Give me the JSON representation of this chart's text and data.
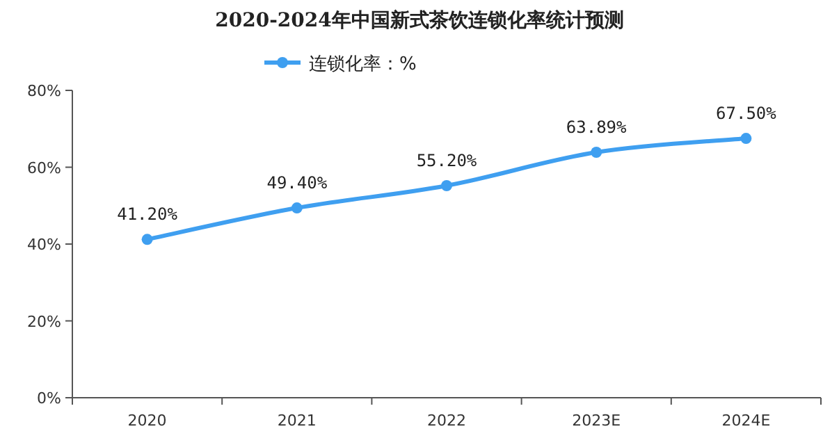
{
  "chart_data": {
    "type": "line",
    "title": "2020-2024年中国新式茶饮连锁化率统计预测",
    "categories": [
      "2020",
      "2021",
      "2022",
      "2023E",
      "2024E"
    ],
    "series": [
      {
        "name": "连锁化率：%",
        "color": "#3f9ff0",
        "values": [
          41.2,
          49.4,
          55.2,
          63.89,
          67.5
        ],
        "value_labels": [
          "41.20%",
          "49.40%",
          "55.20%",
          "63.89%",
          "67.50%"
        ]
      }
    ],
    "ylim": [
      0,
      80
    ],
    "yticks": [
      {
        "value": 0,
        "label": "0%"
      },
      {
        "value": 20,
        "label": "20%"
      },
      {
        "value": 40,
        "label": "40%"
      },
      {
        "value": 60,
        "label": "60%"
      },
      {
        "value": 80,
        "label": "80%"
      }
    ],
    "legend": "top",
    "marker": "circle"
  }
}
